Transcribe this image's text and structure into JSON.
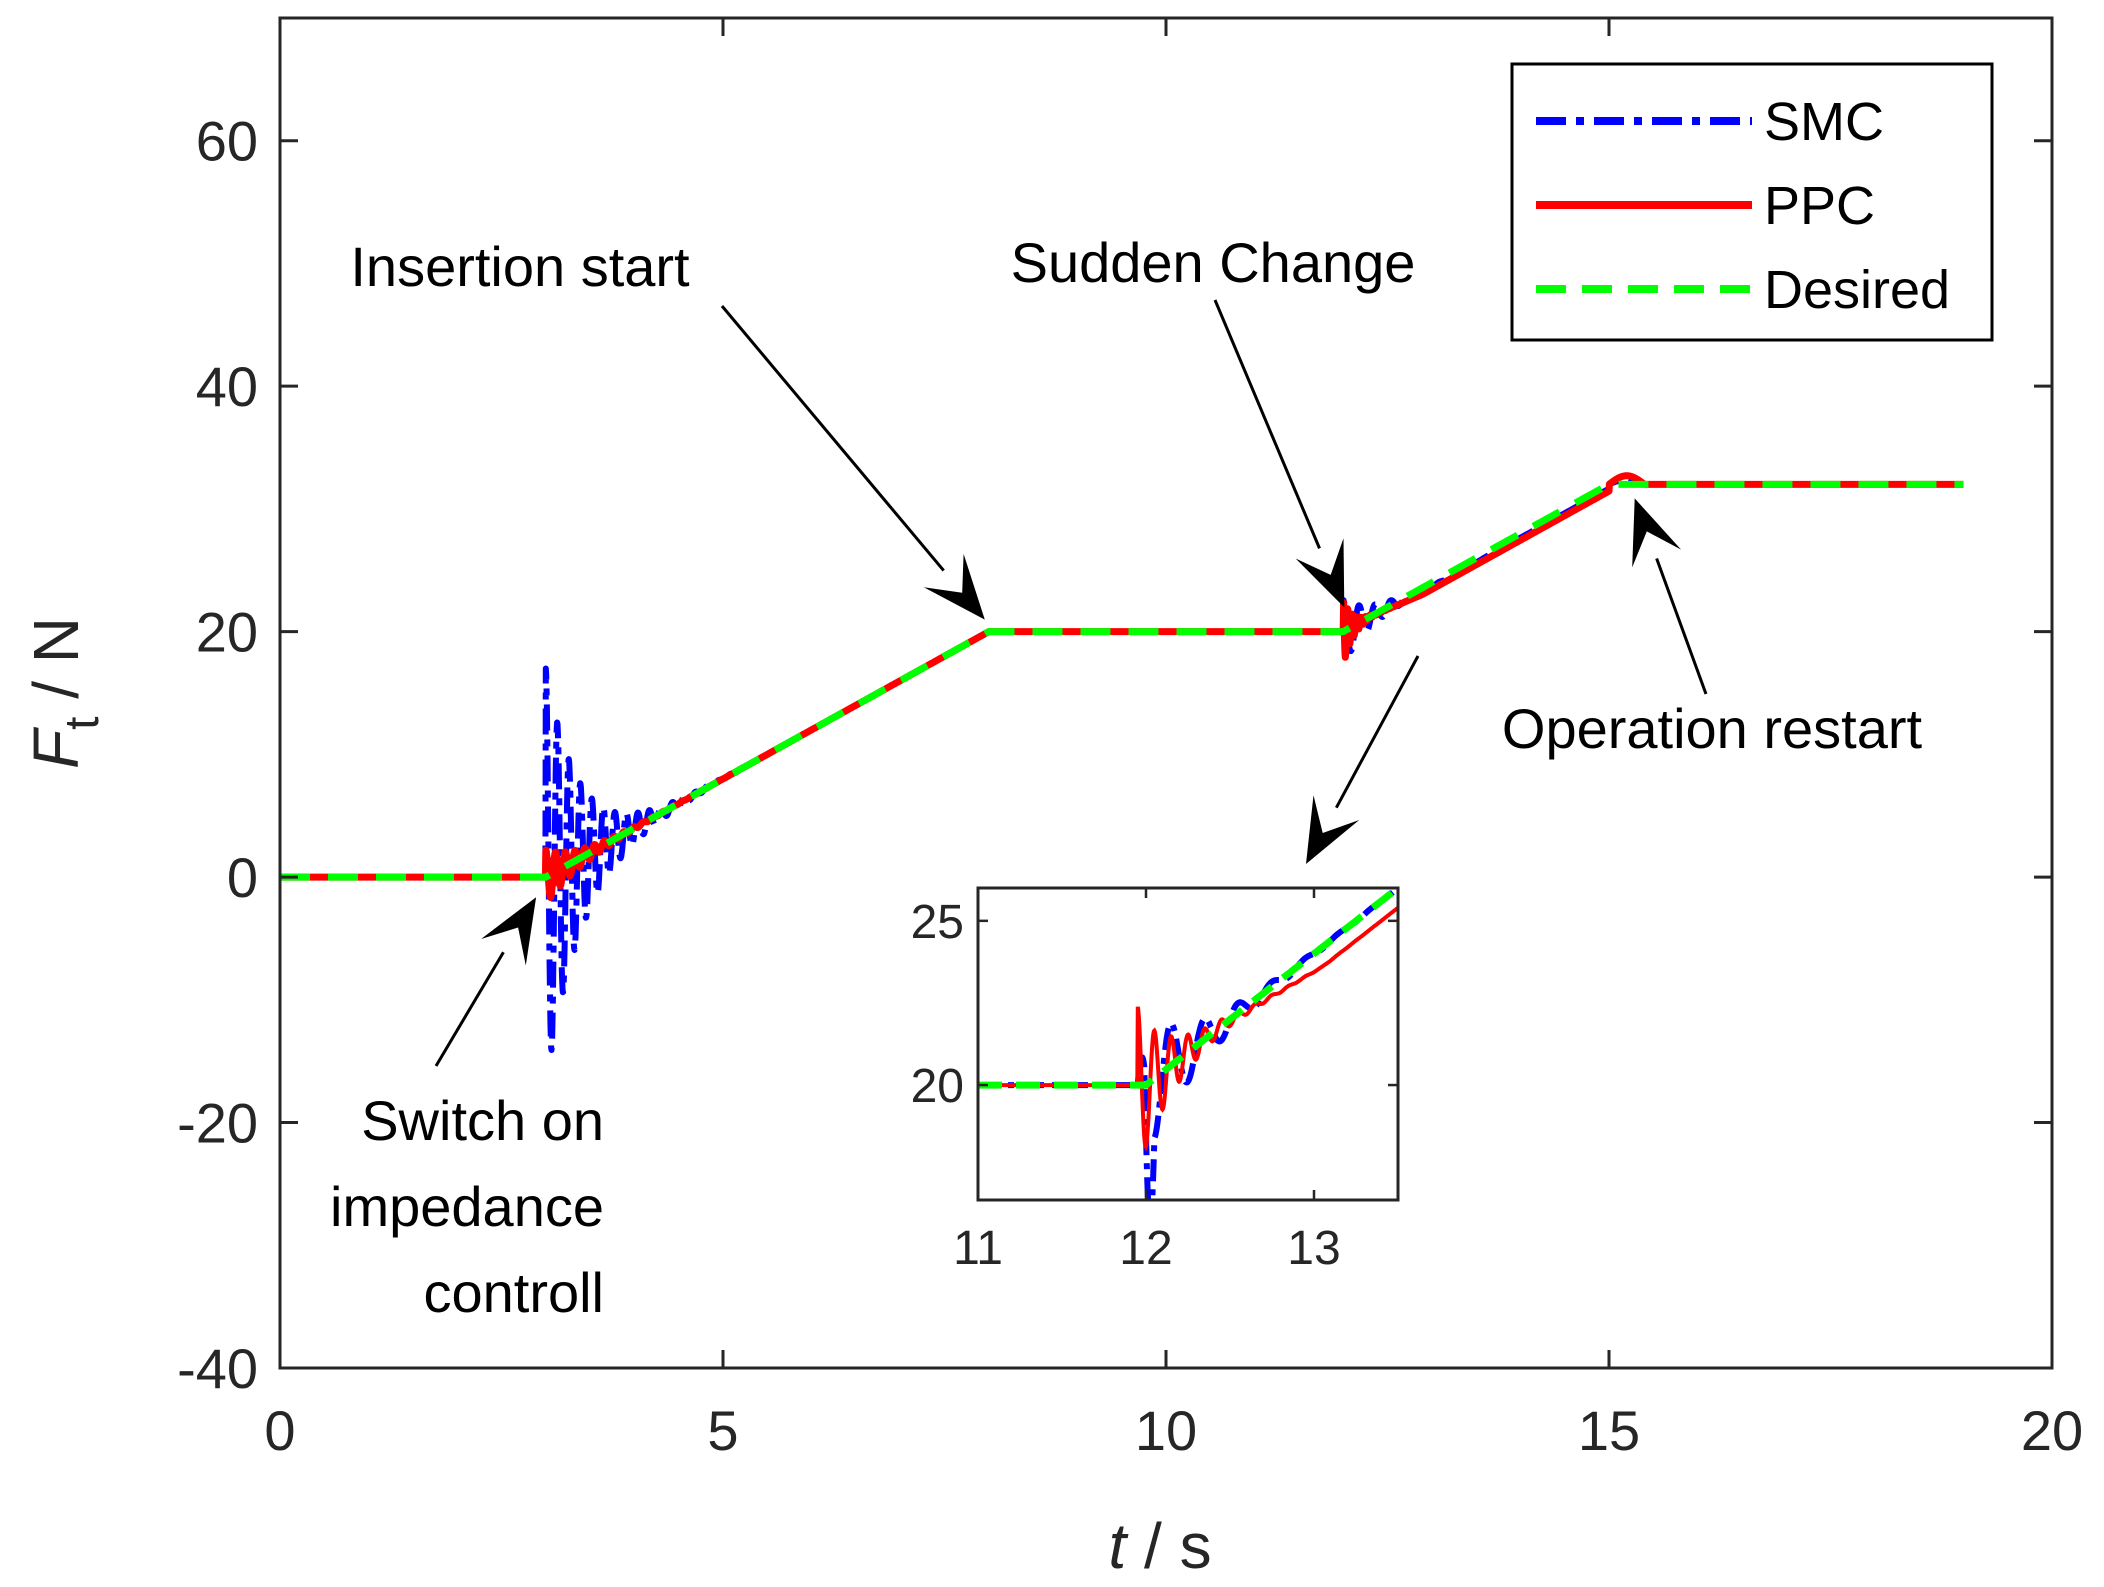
{
  "chart_data": {
    "type": "line",
    "title": "",
    "xlabel": "t / s",
    "ylabel": "F_t / N",
    "xlabel_parts": {
      "var": "t",
      "unit": " / s"
    },
    "ylabel_parts": {
      "var": "F",
      "sub": "t",
      "unit": " / N"
    },
    "xlim": [
      0,
      20
    ],
    "ylim": [
      -40,
      70
    ],
    "xticks": [
      0,
      5,
      10,
      15,
      20
    ],
    "yticks": [
      -40,
      -20,
      0,
      20,
      40,
      60
    ],
    "xtick_labels": [
      "0",
      "5",
      "10",
      "15",
      "20"
    ],
    "ytick_labels": [
      "-40",
      "-20",
      "0",
      "20",
      "40",
      "60"
    ],
    "grid": false,
    "legend_position": "top-right",
    "series": [
      {
        "name": "SMC",
        "color": "#0000ff",
        "style": "dash-dot"
      },
      {
        "name": "PPC",
        "color": "#ff0000",
        "style": "solid"
      },
      {
        "name": "Desired",
        "color": "#00ff00",
        "style": "dashed"
      }
    ],
    "desired_profile": {
      "x": [
        0,
        3,
        8,
        10,
        12,
        15,
        19
      ],
      "y": [
        0,
        0,
        20,
        20,
        20,
        32,
        32
      ]
    },
    "annotations": [
      {
        "id": "insertion-start",
        "lines": [
          "Insertion start"
        ],
        "points_to": [
          8,
          20
        ]
      },
      {
        "id": "sudden-change",
        "lines": [
          "Sudden Change"
        ],
        "points_to": [
          11.9,
          21
        ]
      },
      {
        "id": "operation-restart",
        "lines": [
          "Operation restart"
        ],
        "points_to": [
          15.2,
          32
        ]
      },
      {
        "id": "switch-on",
        "lines": [
          "Switch on",
          "impedance",
          "controll"
        ],
        "points_to": [
          2.8,
          -0.5
        ]
      },
      {
        "id": "zoom-arrow",
        "lines": [],
        "points_to": [
          11.5,
          -0.5
        ]
      }
    ],
    "inset": {
      "xlim": [
        11,
        13.5
      ],
      "ylim": [
        16.5,
        26
      ],
      "xticks": [
        11,
        12,
        13
      ],
      "yticks": [
        20,
        25
      ],
      "xtick_labels": [
        "11",
        "12",
        "13"
      ],
      "ytick_labels": [
        "20",
        "25"
      ]
    }
  }
}
